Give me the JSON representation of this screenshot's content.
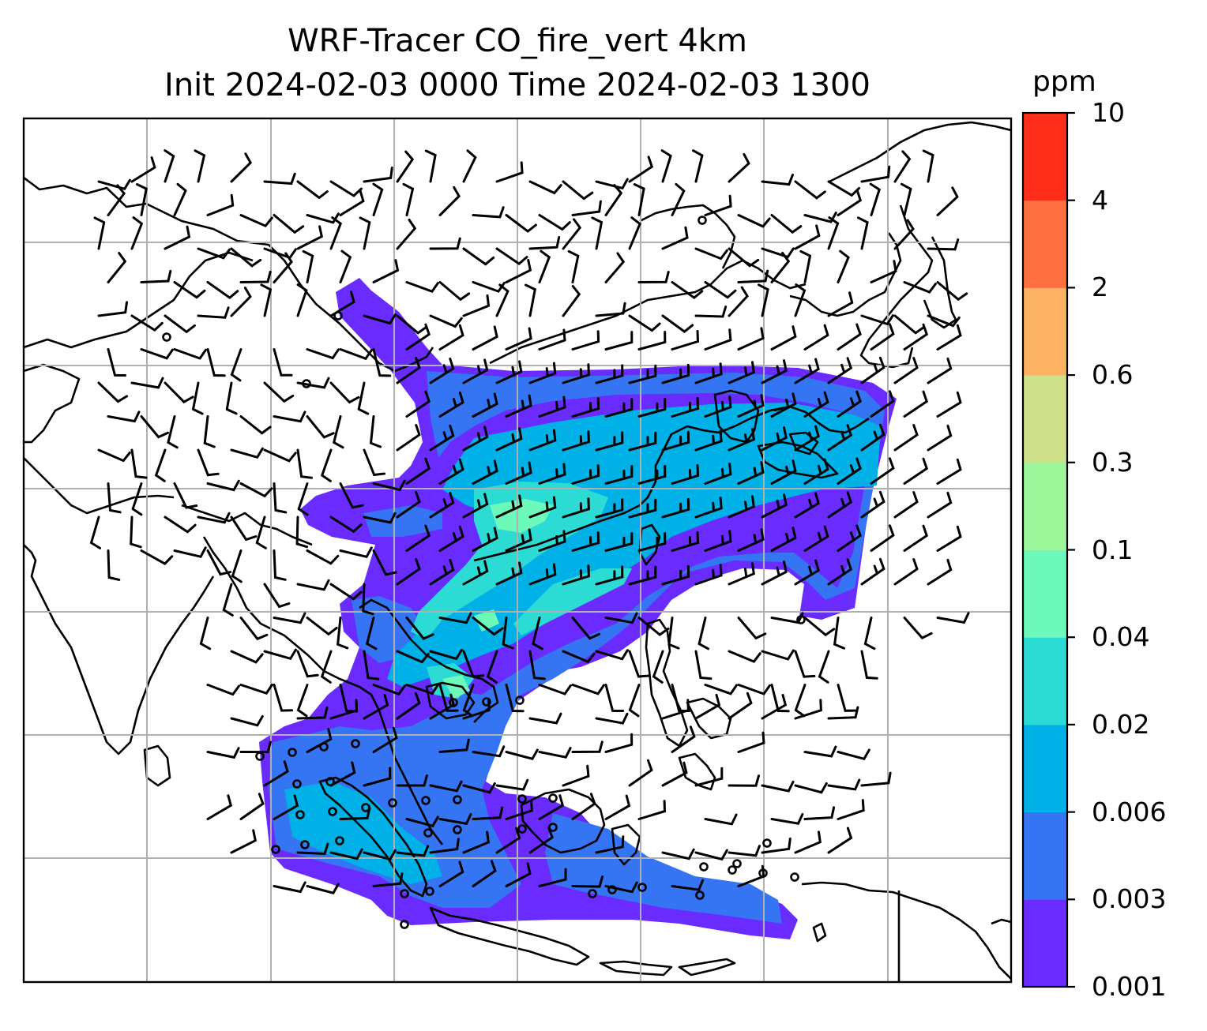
{
  "title": {
    "line1": "WRF-Tracer CO_fire_vert 4km",
    "line2": "Init 2024-02-03 0000 Time 2024-02-03 1300"
  },
  "colorbar": {
    "unit": "ppm",
    "ticks": [
      "0.001",
      "0.003",
      "0.006",
      "0.02",
      "0.04",
      "0.1",
      "0.3",
      "0.6",
      "2",
      "4",
      "10"
    ],
    "colors": [
      "#6a2bff",
      "#3574f2",
      "#00b1e8",
      "#2ddbd5",
      "#6cf9ba",
      "#9cf79a",
      "#cfe08a",
      "#fbb262",
      "#ff7040",
      "#ff2e1a"
    ]
  },
  "map": {
    "field": "CO_fire_vert",
    "gridlines": true,
    "overlays": [
      "coastlines",
      "wind-barbs",
      "calm-circles"
    ]
  }
}
